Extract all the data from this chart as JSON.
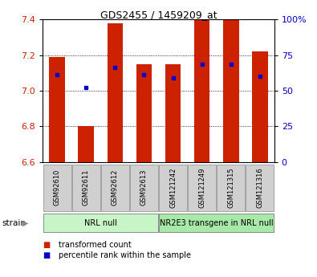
{
  "title": "GDS2455 / 1459209_at",
  "samples": [
    "GSM92610",
    "GSM92611",
    "GSM92612",
    "GSM92613",
    "GSM121242",
    "GSM121249",
    "GSM121315",
    "GSM121316"
  ],
  "red_values": [
    7.19,
    6.8,
    7.38,
    7.15,
    7.15,
    7.4,
    7.4,
    7.22
  ],
  "blue_values": [
    7.09,
    7.02,
    7.13,
    7.09,
    7.07,
    7.15,
    7.15,
    7.08
  ],
  "ylim": [
    6.6,
    7.4
  ],
  "yticks_left": [
    6.6,
    6.8,
    7.0,
    7.2,
    7.4
  ],
  "yticks_right": [
    0,
    25,
    50,
    75,
    100
  ],
  "groups": [
    {
      "label": "NRL null",
      "start": 0,
      "end": 4,
      "color": "#c8f5c8"
    },
    {
      "label": "NR2E3 transgene in NRL null",
      "start": 4,
      "end": 8,
      "color": "#a8e8a8"
    }
  ],
  "bar_color": "#cc2200",
  "dot_color": "#0000cc",
  "bar_width": 0.55,
  "ylabel_left_color": "#cc2200",
  "ylabel_right_color": "#0000cc",
  "sample_box_color": "#d0d0d0",
  "legend_items": [
    "transformed count",
    "percentile rank within the sample"
  ],
  "legend_colors": [
    "#cc2200",
    "#0000cc"
  ],
  "title_fontsize": 9,
  "tick_fontsize": 8,
  "sample_fontsize": 6,
  "group_fontsize": 7,
  "legend_fontsize": 7
}
